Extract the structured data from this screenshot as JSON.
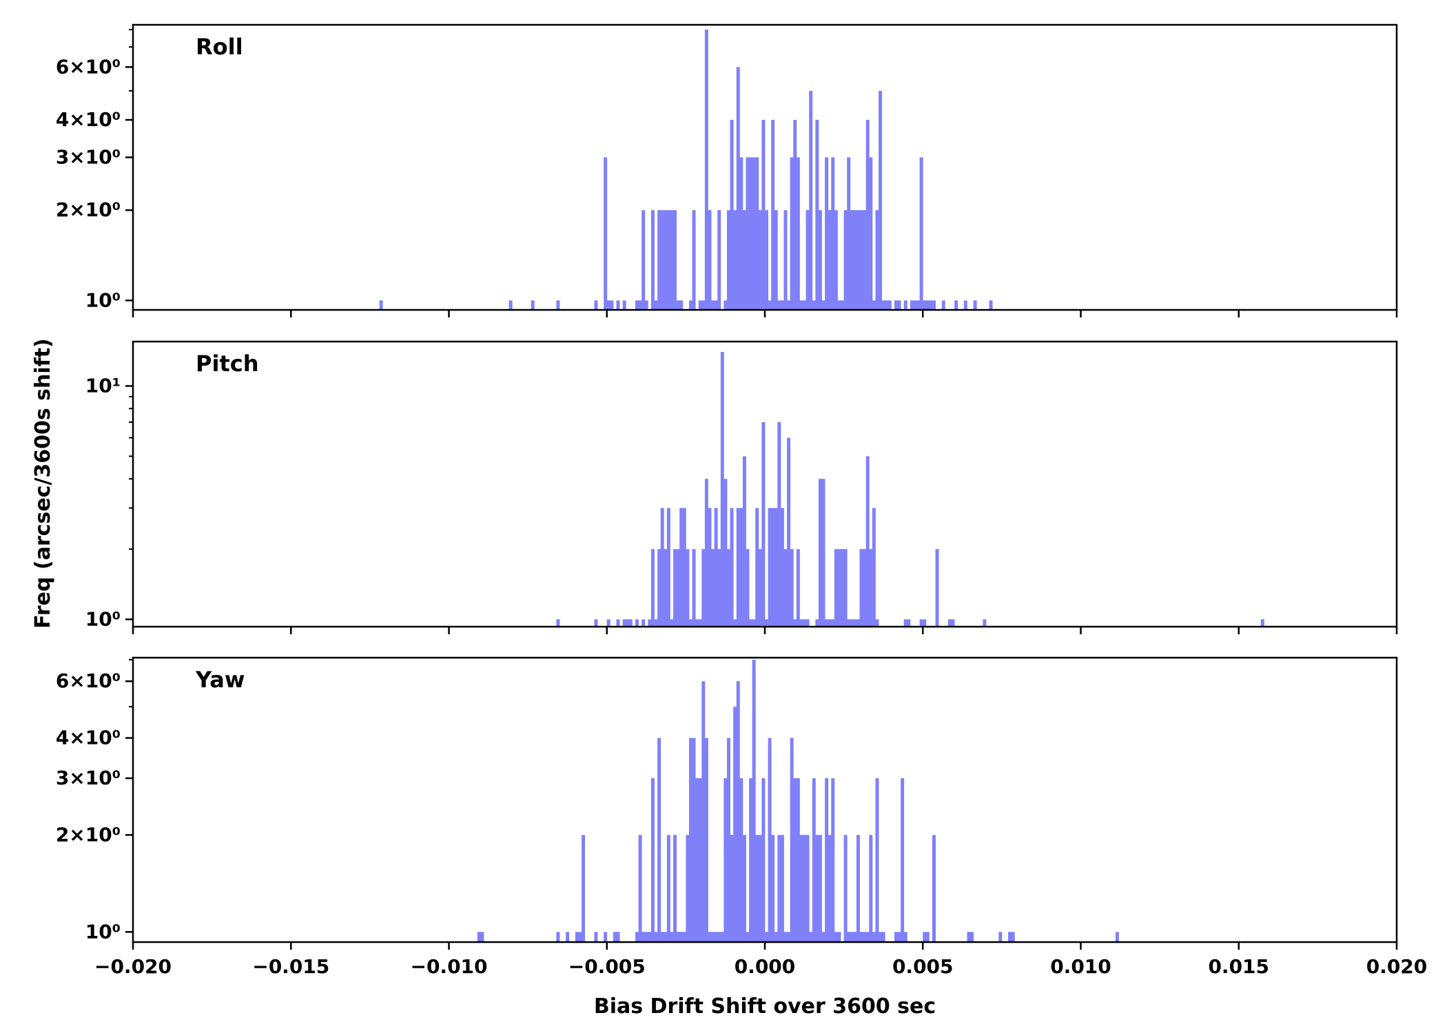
{
  "chart_data": {
    "type": "bar",
    "xlabel": "Bias Drift Shift over 3600 sec",
    "ylabel": "Freq (arcsec/3600s shift)",
    "xlim": [
      -0.02,
      0.02
    ],
    "x_ticks": [
      -0.02,
      -0.015,
      -0.01,
      -0.005,
      0.0,
      0.005,
      0.01,
      0.015,
      0.02
    ],
    "x_tick_labels": [
      "−0.020",
      "−0.015",
      "−0.010",
      "−0.005",
      "0.000",
      "0.005",
      "0.010",
      "0.015",
      "0.020"
    ],
    "y_scale": "log",
    "bar_color": "#8080f8",
    "panels": [
      {
        "label": "Roll",
        "ylim": [
          0.93,
          8.3
        ],
        "y_ticks": [
          1,
          2,
          3,
          4,
          6
        ],
        "y_tick_labels": [
          "10⁰",
          "2×10⁰",
          "3×10⁰",
          "4×10⁰",
          "6×10⁰"
        ],
        "bins": [
          [
            -0.0122,
            1
          ],
          [
            -0.0081,
            1
          ],
          [
            -0.0074,
            1
          ],
          [
            -0.0066,
            1
          ],
          [
            -0.0054,
            1
          ],
          [
            -0.0051,
            3
          ],
          [
            -0.005,
            1
          ],
          [
            -0.0049,
            1
          ],
          [
            -0.0047,
            1
          ],
          [
            -0.0045,
            1
          ],
          [
            -0.0041,
            1
          ],
          [
            -0.004,
            1
          ],
          [
            -0.0039,
            2
          ],
          [
            -0.0038,
            1
          ],
          [
            -0.0036,
            2
          ],
          [
            -0.0035,
            1
          ],
          [
            -0.0034,
            2
          ],
          [
            -0.0033,
            2
          ],
          [
            -0.0032,
            2
          ],
          [
            -0.0031,
            2
          ],
          [
            -0.003,
            2
          ],
          [
            -0.0029,
            2
          ],
          [
            -0.0028,
            1
          ],
          [
            -0.0027,
            1
          ],
          [
            -0.0024,
            1
          ],
          [
            -0.0023,
            2
          ],
          [
            -0.0021,
            1
          ],
          [
            -0.002,
            1
          ],
          [
            -0.0019,
            8
          ],
          [
            -0.0018,
            2
          ],
          [
            -0.0017,
            1
          ],
          [
            -0.0016,
            1
          ],
          [
            -0.0015,
            2
          ],
          [
            -0.0013,
            1
          ],
          [
            -0.0012,
            2
          ],
          [
            -0.0011,
            4
          ],
          [
            -0.001,
            2
          ],
          [
            -0.0009,
            6
          ],
          [
            -0.0008,
            3
          ],
          [
            -0.0007,
            2
          ],
          [
            -0.0006,
            3
          ],
          [
            -0.0005,
            3
          ],
          [
            -0.0004,
            3
          ],
          [
            -0.0003,
            3
          ],
          [
            -0.0002,
            2
          ],
          [
            -0.0001,
            4
          ],
          [
            0.0,
            2
          ],
          [
            0.0001,
            1
          ],
          [
            0.0002,
            4
          ],
          [
            0.0003,
            2
          ],
          [
            0.0004,
            1
          ],
          [
            0.0005,
            1
          ],
          [
            0.0006,
            2
          ],
          [
            0.0007,
            1
          ],
          [
            0.0008,
            3
          ],
          [
            0.0009,
            4
          ],
          [
            0.001,
            3
          ],
          [
            0.0011,
            1
          ],
          [
            0.0012,
            1
          ],
          [
            0.0013,
            2
          ],
          [
            0.0014,
            5
          ],
          [
            0.0015,
            1
          ],
          [
            0.0016,
            4
          ],
          [
            0.0017,
            2
          ],
          [
            0.0018,
            1
          ],
          [
            0.0019,
            3
          ],
          [
            0.002,
            2
          ],
          [
            0.0021,
            3
          ],
          [
            0.0022,
            2
          ],
          [
            0.0023,
            1
          ],
          [
            0.0024,
            1
          ],
          [
            0.0025,
            2
          ],
          [
            0.0026,
            3
          ],
          [
            0.0027,
            2
          ],
          [
            0.0028,
            2
          ],
          [
            0.0029,
            2
          ],
          [
            0.003,
            2
          ],
          [
            0.0031,
            2
          ],
          [
            0.0032,
            4
          ],
          [
            0.0033,
            3
          ],
          [
            0.0034,
            1
          ],
          [
            0.0035,
            2
          ],
          [
            0.0036,
            5
          ],
          [
            0.0037,
            1
          ],
          [
            0.0038,
            1
          ],
          [
            0.0039,
            1
          ],
          [
            0.0041,
            1
          ],
          [
            0.0042,
            1
          ],
          [
            0.0044,
            1
          ],
          [
            0.0046,
            1
          ],
          [
            0.0047,
            1
          ],
          [
            0.0048,
            1
          ],
          [
            0.0049,
            3
          ],
          [
            0.005,
            1
          ],
          [
            0.0051,
            1
          ],
          [
            0.0052,
            1
          ],
          [
            0.0053,
            1
          ],
          [
            0.0056,
            1
          ],
          [
            0.006,
            1
          ],
          [
            0.0063,
            1
          ],
          [
            0.0066,
            1
          ],
          [
            0.0071,
            1
          ]
        ]
      },
      {
        "label": "Pitch",
        "ylim": [
          0.93,
          15.5
        ],
        "y_ticks": [
          1,
          10
        ],
        "y_tick_labels": [
          "10⁰",
          "10¹"
        ],
        "bins": [
          [
            -0.0066,
            1
          ],
          [
            -0.0054,
            1
          ],
          [
            -0.005,
            1
          ],
          [
            -0.0047,
            1
          ],
          [
            -0.0045,
            1
          ],
          [
            -0.0044,
            1
          ],
          [
            -0.0043,
            1
          ],
          [
            -0.0041,
            1
          ],
          [
            -0.0039,
            1
          ],
          [
            -0.0037,
            1
          ],
          [
            -0.0036,
            2
          ],
          [
            -0.0035,
            1
          ],
          [
            -0.0034,
            2
          ],
          [
            -0.0033,
            3
          ],
          [
            -0.0032,
            2
          ],
          [
            -0.0031,
            3
          ],
          [
            -0.003,
            1
          ],
          [
            -0.0029,
            2
          ],
          [
            -0.0028,
            2
          ],
          [
            -0.0027,
            3
          ],
          [
            -0.0026,
            3
          ],
          [
            -0.0025,
            2
          ],
          [
            -0.0024,
            1
          ],
          [
            -0.0023,
            2
          ],
          [
            -0.0022,
            1
          ],
          [
            -0.0021,
            1
          ],
          [
            -0.002,
            2
          ],
          [
            -0.0019,
            4
          ],
          [
            -0.0018,
            3
          ],
          [
            -0.0017,
            2
          ],
          [
            -0.0016,
            3
          ],
          [
            -0.0015,
            2
          ],
          [
            -0.0014,
            14
          ],
          [
            -0.0013,
            4
          ],
          [
            -0.0012,
            2
          ],
          [
            -0.0011,
            3
          ],
          [
            -0.001,
            1
          ],
          [
            -0.0009,
            3
          ],
          [
            -0.0008,
            3
          ],
          [
            -0.0007,
            5
          ],
          [
            -0.0006,
            2
          ],
          [
            -0.0005,
            1
          ],
          [
            -0.0004,
            1
          ],
          [
            -0.0003,
            3
          ],
          [
            -0.0002,
            2
          ],
          [
            -0.0001,
            7
          ],
          [
            0.0,
            1
          ],
          [
            0.0001,
            3
          ],
          [
            0.0002,
            3
          ],
          [
            0.0003,
            3
          ],
          [
            0.0004,
            7
          ],
          [
            0.0005,
            3
          ],
          [
            0.0006,
            2
          ],
          [
            0.0007,
            6
          ],
          [
            0.0008,
            2
          ],
          [
            0.0009,
            1
          ],
          [
            0.001,
            2
          ],
          [
            0.0011,
            1
          ],
          [
            0.0012,
            1
          ],
          [
            0.0013,
            1
          ],
          [
            0.0016,
            1
          ],
          [
            0.0017,
            4
          ],
          [
            0.0018,
            4
          ],
          [
            0.0019,
            1
          ],
          [
            0.002,
            1
          ],
          [
            0.0021,
            1
          ],
          [
            0.0022,
            2
          ],
          [
            0.0023,
            2
          ],
          [
            0.0024,
            2
          ],
          [
            0.0025,
            2
          ],
          [
            0.0026,
            1
          ],
          [
            0.0027,
            1
          ],
          [
            0.0028,
            1
          ],
          [
            0.0029,
            1
          ],
          [
            0.003,
            2
          ],
          [
            0.0031,
            2
          ],
          [
            0.0032,
            5
          ],
          [
            0.0033,
            2
          ],
          [
            0.0034,
            3
          ],
          [
            0.0035,
            1
          ],
          [
            0.0044,
            1
          ],
          [
            0.0045,
            1
          ],
          [
            0.0049,
            1
          ],
          [
            0.005,
            1
          ],
          [
            0.0054,
            2
          ],
          [
            0.0058,
            1
          ],
          [
            0.0059,
            1
          ],
          [
            0.0069,
            1
          ],
          [
            0.0157,
            1
          ]
        ]
      },
      {
        "label": "Yaw",
        "ylim": [
          0.93,
          7.1
        ],
        "y_ticks": [
          1,
          2,
          3,
          4,
          6
        ],
        "y_tick_labels": [
          "10⁰",
          "2×10⁰",
          "3×10⁰",
          "4×10⁰",
          "6×10⁰"
        ],
        "bins": [
          [
            -0.0091,
            1
          ],
          [
            -0.009,
            1
          ],
          [
            -0.0066,
            1
          ],
          [
            -0.0063,
            1
          ],
          [
            -0.006,
            1
          ],
          [
            -0.0059,
            1
          ],
          [
            -0.0058,
            2
          ],
          [
            -0.0054,
            1
          ],
          [
            -0.0051,
            1
          ],
          [
            -0.0048,
            1
          ],
          [
            -0.0047,
            1
          ],
          [
            -0.0041,
            1
          ],
          [
            -0.004,
            2
          ],
          [
            -0.0039,
            1
          ],
          [
            -0.0038,
            1
          ],
          [
            -0.0037,
            1
          ],
          [
            -0.0036,
            3
          ],
          [
            -0.0035,
            1
          ],
          [
            -0.0034,
            4
          ],
          [
            -0.0033,
            1
          ],
          [
            -0.0032,
            1
          ],
          [
            -0.0031,
            2
          ],
          [
            -0.003,
            1
          ],
          [
            -0.0029,
            2
          ],
          [
            -0.0028,
            1
          ],
          [
            -0.0027,
            1
          ],
          [
            -0.0026,
            1
          ],
          [
            -0.0025,
            2
          ],
          [
            -0.0024,
            4
          ],
          [
            -0.0023,
            4
          ],
          [
            -0.0022,
            3
          ],
          [
            -0.0021,
            3
          ],
          [
            -0.002,
            6
          ],
          [
            -0.0019,
            4
          ],
          [
            -0.0018,
            1
          ],
          [
            -0.0017,
            1
          ],
          [
            -0.0016,
            1
          ],
          [
            -0.0015,
            1
          ],
          [
            -0.0014,
            1
          ],
          [
            -0.0013,
            3
          ],
          [
            -0.0012,
            4
          ],
          [
            -0.0011,
            2
          ],
          [
            -0.001,
            5
          ],
          [
            -0.0009,
            6
          ],
          [
            -0.0008,
            3
          ],
          [
            -0.0007,
            2
          ],
          [
            -0.0006,
            1
          ],
          [
            -0.0005,
            3
          ],
          [
            -0.0004,
            7
          ],
          [
            -0.0003,
            2
          ],
          [
            -0.0002,
            2
          ],
          [
            -0.0001,
            3
          ],
          [
            0.0,
            1
          ],
          [
            0.0001,
            4
          ],
          [
            0.0002,
            2
          ],
          [
            0.0003,
            1
          ],
          [
            0.0004,
            2
          ],
          [
            0.0005,
            2
          ],
          [
            0.0006,
            1
          ],
          [
            0.0007,
            1
          ],
          [
            0.0008,
            4
          ],
          [
            0.0009,
            3
          ],
          [
            0.001,
            3
          ],
          [
            0.0011,
            2
          ],
          [
            0.0012,
            2
          ],
          [
            0.0013,
            2
          ],
          [
            0.0014,
            1
          ],
          [
            0.0015,
            3
          ],
          [
            0.0016,
            2
          ],
          [
            0.0017,
            2
          ],
          [
            0.0018,
            1
          ],
          [
            0.0019,
            3
          ],
          [
            0.002,
            2
          ],
          [
            0.0021,
            3
          ],
          [
            0.0022,
            1
          ],
          [
            0.0023,
            1
          ],
          [
            0.0025,
            2
          ],
          [
            0.0026,
            1
          ],
          [
            0.0027,
            1
          ],
          [
            0.0028,
            1
          ],
          [
            0.0029,
            2
          ],
          [
            0.003,
            1
          ],
          [
            0.0031,
            1
          ],
          [
            0.0032,
            1
          ],
          [
            0.0033,
            2
          ],
          [
            0.0034,
            1
          ],
          [
            0.0035,
            3
          ],
          [
            0.0036,
            1
          ],
          [
            0.0037,
            1
          ],
          [
            0.0041,
            1
          ],
          [
            0.0042,
            1
          ],
          [
            0.0043,
            3
          ],
          [
            0.0044,
            1
          ],
          [
            0.005,
            1
          ],
          [
            0.0051,
            1
          ],
          [
            0.0053,
            2
          ],
          [
            0.0064,
            1
          ],
          [
            0.0065,
            1
          ],
          [
            0.0074,
            1
          ],
          [
            0.0077,
            1
          ],
          [
            0.0078,
            1
          ],
          [
            0.0111,
            1
          ]
        ]
      }
    ]
  }
}
